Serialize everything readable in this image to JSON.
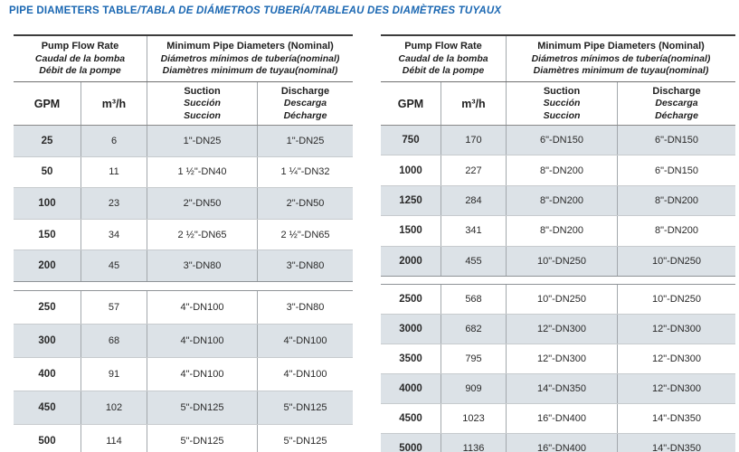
{
  "title": {
    "main": "PIPE DIAMETERS TABLE",
    "translations": "/TABLA DE DIÁMETROS TUBERÍA/TABLEAU DES DIAMÈTRES TUYAUX"
  },
  "colors": {
    "title_blue": "#1a67b2",
    "row_shade": "#dce2e7"
  },
  "header": {
    "flow_rate_lines": [
      "Pump Flow Rate",
      "Caudal de la bomba",
      "Débit de la pompe"
    ],
    "min_diam_lines": [
      "Minimum Pipe Diameters (Nominal)",
      "Diámetros mínimos de tubería(nominal)",
      "Diamètres minimum de tuyau(nominal)"
    ],
    "col_gpm": "GPM",
    "col_m3h": "m³/h",
    "suction_lines": [
      "Suction",
      "Succión",
      "Succion"
    ],
    "discharge_lines": [
      "Discharge",
      "Descarga",
      "Décharge"
    ]
  },
  "tables": [
    {
      "name": "left",
      "sections": [
        {
          "rows": [
            [
              "25",
              "6",
              "1\"-DN25",
              "1\"-DN25"
            ],
            [
              "50",
              "11",
              "1 ½\"-DN40",
              "1 ¼\"-DN32"
            ],
            [
              "100",
              "23",
              "2\"-DN50",
              "2\"-DN50"
            ],
            [
              "150",
              "34",
              "2 ½\"-DN65",
              "2 ½\"-DN65"
            ],
            [
              "200",
              "45",
              "3\"-DN80",
              "3\"-DN80"
            ]
          ]
        },
        {
          "rows": [
            [
              "250",
              "57",
              "4\"-DN100",
              "3\"-DN80"
            ],
            [
              "300",
              "68",
              "4\"-DN100",
              "4\"-DN100"
            ],
            [
              "400",
              "91",
              "4\"-DN100",
              "4\"-DN100"
            ],
            [
              "450",
              "102",
              "5\"-DN125",
              "5\"-DN125"
            ],
            [
              "500",
              "114",
              "5\"-DN125",
              "5\"-DN125"
            ]
          ]
        }
      ]
    },
    {
      "name": "right",
      "sections": [
        {
          "rows": [
            [
              "750",
              "170",
              "6\"-DN150",
              "6\"-DN150"
            ],
            [
              "1000",
              "227",
              "8\"-DN200",
              "6\"-DN150"
            ],
            [
              "1250",
              "284",
              "8\"-DN200",
              "8\"-DN200"
            ],
            [
              "1500",
              "341",
              "8\"-DN200",
              "8\"-DN200"
            ],
            [
              "2000",
              "455",
              "10\"-DN250",
              "10\"-DN250"
            ]
          ]
        },
        {
          "rows": [
            [
              "2500",
              "568",
              "10\"-DN250",
              "10\"-DN250"
            ],
            [
              "3000",
              "682",
              "12\"-DN300",
              "12\"-DN300"
            ],
            [
              "3500",
              "795",
              "12\"-DN300",
              "12\"-DN300"
            ],
            [
              "4000",
              "909",
              "14\"-DN350",
              "12\"-DN300"
            ],
            [
              "4500",
              "1023",
              "16\"-DN400",
              "14\"-DN350"
            ],
            [
              "5000",
              "1136",
              "16\"-DN400",
              "14\"-DN350"
            ]
          ]
        }
      ]
    }
  ]
}
